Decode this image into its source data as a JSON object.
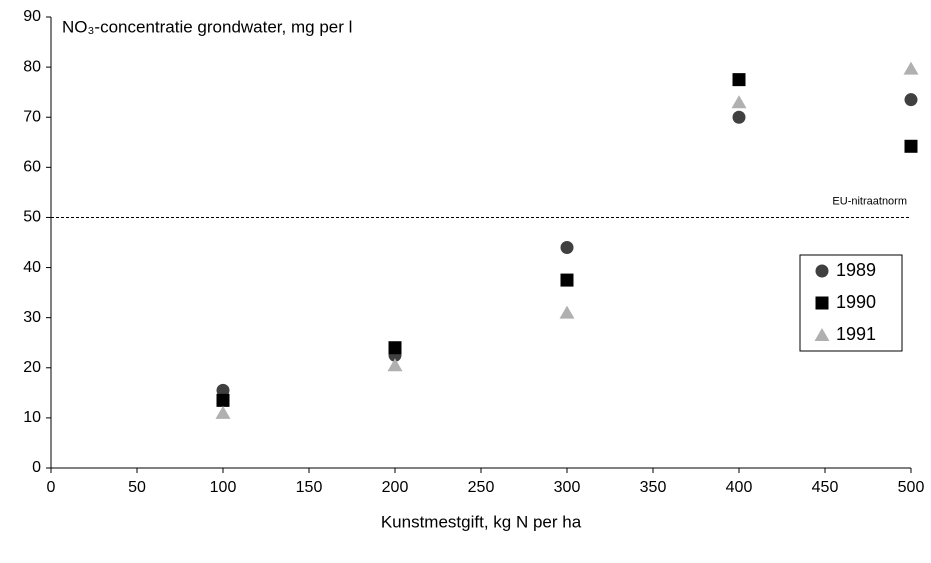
{
  "chart_data": {
    "type": "scatter",
    "title": "NO₃-concentratie grondwater, mg per l",
    "x_label": "Kunstmestgift, kg N per ha",
    "xlim": [
      0,
      500
    ],
    "xticks": [
      0,
      50,
      100,
      150,
      200,
      250,
      300,
      350,
      400,
      450,
      500
    ],
    "ylim": [
      0,
      90
    ],
    "yticks": [
      0,
      10,
      20,
      30,
      40,
      50,
      60,
      70,
      80,
      90
    ],
    "grid": false,
    "legend": "right",
    "reference_line": {
      "value": 50,
      "label": "EU-nitraatnorm"
    },
    "series": [
      {
        "name": "1989",
        "color": "#404040",
        "marker": "circle",
        "x": [
          100,
          200,
          300,
          400,
          500
        ],
        "values": [
          15.5,
          22.5,
          44,
          70,
          73.5
        ]
      },
      {
        "name": "1990",
        "color": "#000000",
        "marker": "square",
        "x": [
          100,
          200,
          300,
          400,
          500
        ],
        "values": [
          13.5,
          24,
          37.5,
          77.5,
          64.2
        ]
      },
      {
        "name": "1991",
        "color": "#b0b0b0",
        "marker": "triangle",
        "x": [
          100,
          200,
          300,
          400,
          500
        ],
        "values": [
          11,
          20.5,
          31,
          73,
          79.7
        ]
      }
    ]
  }
}
